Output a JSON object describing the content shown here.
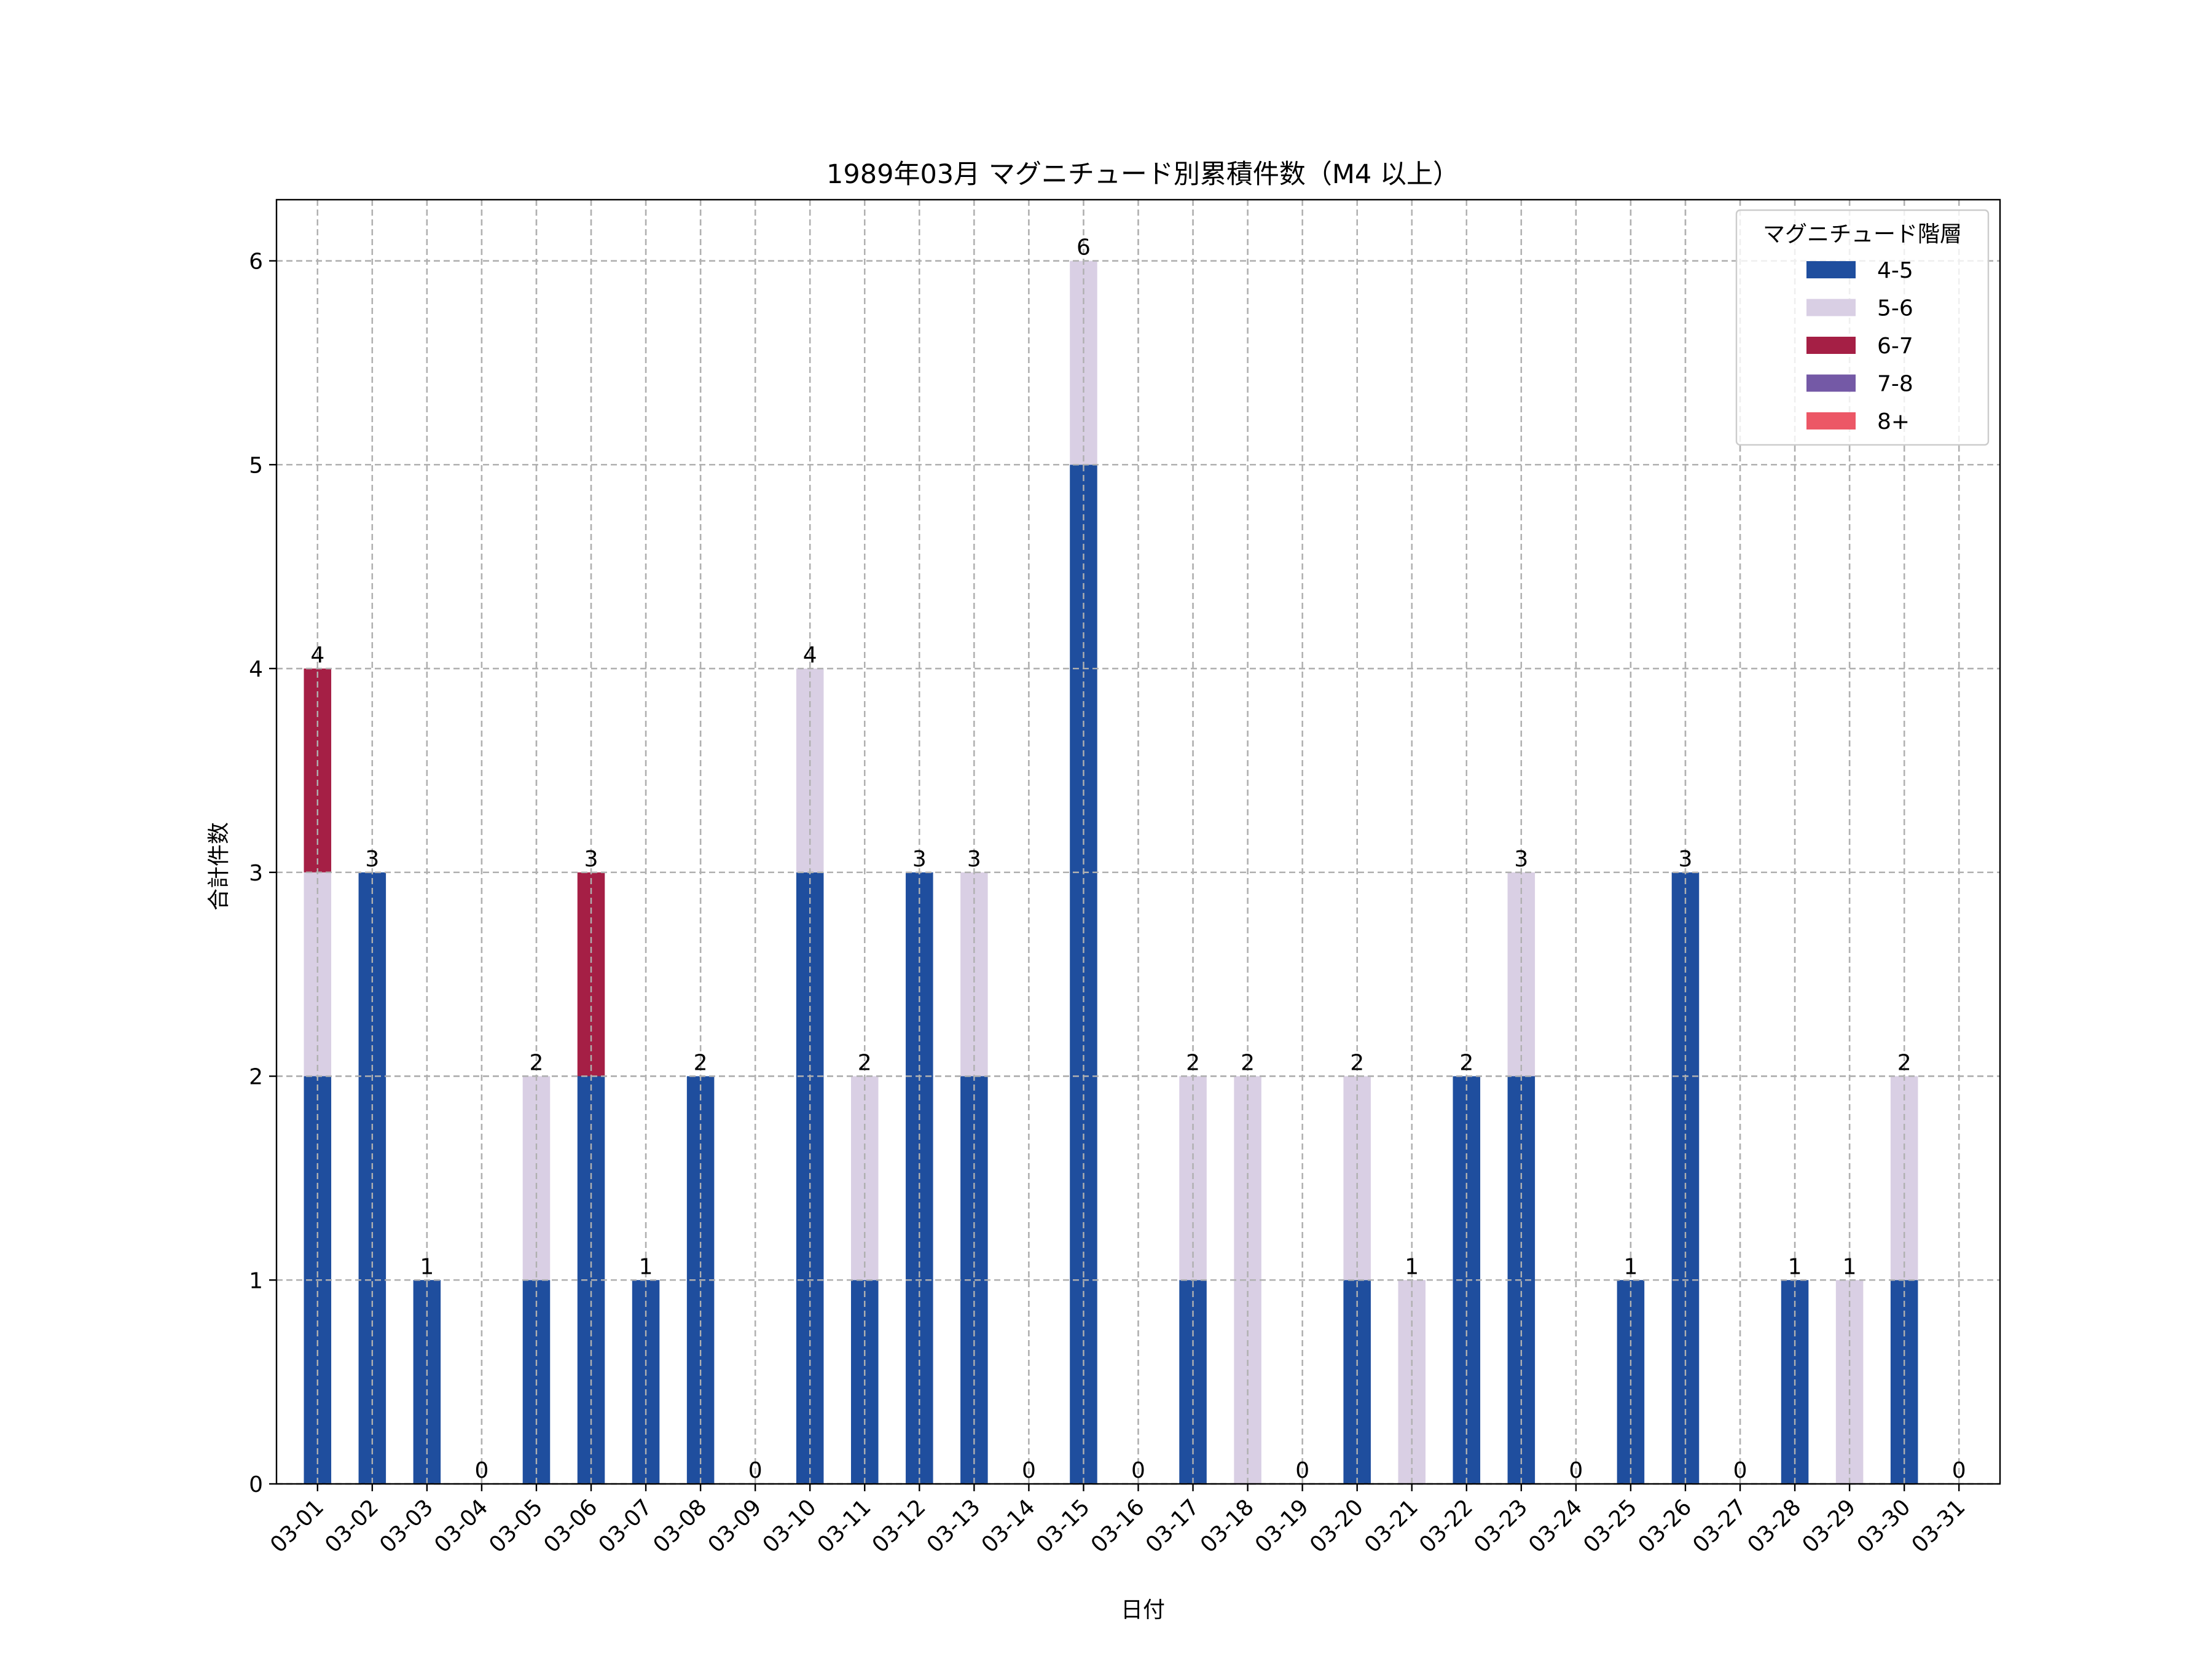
{
  "chart_data": {
    "type": "bar",
    "stacked": true,
    "title": "1989年03月 マグニチュード別累積件数（M4 以上）",
    "xlabel": "日付",
    "ylabel": "合計件数",
    "ylim": [
      0,
      6.3
    ],
    "yticks": [
      0,
      1,
      2,
      3,
      4,
      5,
      6
    ],
    "grid": true,
    "legend": {
      "title": "マグニチュード階層",
      "placement": "top-right"
    },
    "categories": [
      "03-01",
      "03-02",
      "03-03",
      "03-04",
      "03-05",
      "03-06",
      "03-07",
      "03-08",
      "03-09",
      "03-10",
      "03-11",
      "03-12",
      "03-13",
      "03-14",
      "03-15",
      "03-16",
      "03-17",
      "03-18",
      "03-19",
      "03-20",
      "03-21",
      "03-22",
      "03-23",
      "03-24",
      "03-25",
      "03-26",
      "03-27",
      "03-28",
      "03-29",
      "03-30",
      "03-31"
    ],
    "series": [
      {
        "name": "4-5",
        "color": "#1f4e9e",
        "values": [
          2,
          3,
          1,
          0,
          1,
          2,
          1,
          2,
          0,
          3,
          1,
          3,
          2,
          0,
          5,
          0,
          1,
          0,
          0,
          1,
          0,
          2,
          2,
          0,
          1,
          3,
          0,
          1,
          0,
          1,
          0
        ]
      },
      {
        "name": "5-6",
        "color": "#d9cfe4",
        "values": [
          1,
          0,
          0,
          0,
          1,
          0,
          0,
          0,
          0,
          1,
          1,
          0,
          1,
          0,
          1,
          0,
          1,
          2,
          0,
          1,
          1,
          0,
          1,
          0,
          0,
          0,
          0,
          0,
          1,
          1,
          0
        ]
      },
      {
        "name": "6-7",
        "color": "#a51f45",
        "values": [
          1,
          0,
          0,
          0,
          0,
          1,
          0,
          0,
          0,
          0,
          0,
          0,
          0,
          0,
          0,
          0,
          0,
          0,
          0,
          0,
          0,
          0,
          0,
          0,
          0,
          0,
          0,
          0,
          0,
          0,
          0
        ]
      },
      {
        "name": "7-8",
        "color": "#7459a6",
        "values": [
          0,
          0,
          0,
          0,
          0,
          0,
          0,
          0,
          0,
          0,
          0,
          0,
          0,
          0,
          0,
          0,
          0,
          0,
          0,
          0,
          0,
          0,
          0,
          0,
          0,
          0,
          0,
          0,
          0,
          0,
          0
        ]
      },
      {
        "name": "8+",
        "color": "#ec5766",
        "values": [
          0,
          0,
          0,
          0,
          0,
          0,
          0,
          0,
          0,
          0,
          0,
          0,
          0,
          0,
          0,
          0,
          0,
          0,
          0,
          0,
          0,
          0,
          0,
          0,
          0,
          0,
          0,
          0,
          0,
          0,
          0
        ]
      }
    ],
    "totals": [
      4,
      3,
      1,
      0,
      2,
      3,
      1,
      2,
      0,
      4,
      2,
      3,
      3,
      0,
      6,
      0,
      2,
      2,
      0,
      2,
      1,
      2,
      3,
      0,
      1,
      3,
      0,
      1,
      1,
      2,
      0
    ]
  }
}
